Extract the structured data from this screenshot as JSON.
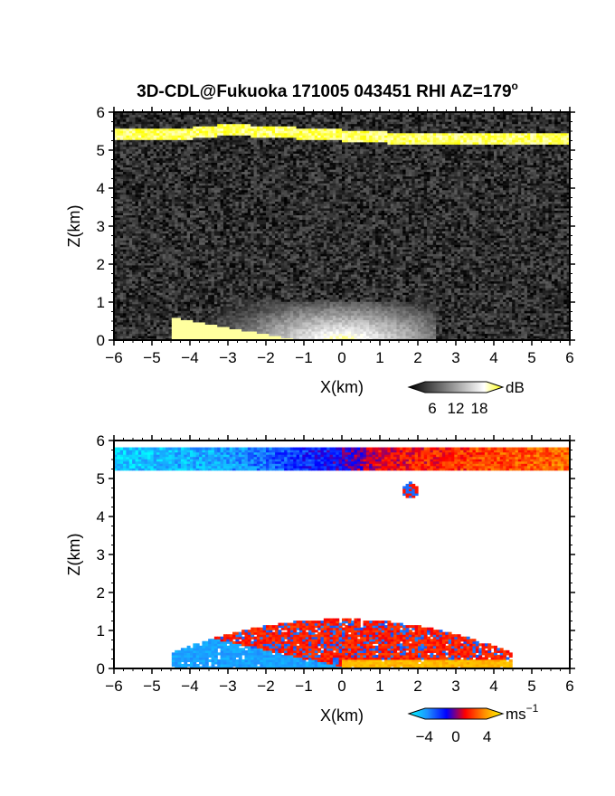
{
  "title": "3D-CDL@Fukuoka 171005 043451 RHI AZ=179",
  "title_superscript": "o",
  "chart_data": [
    {
      "type": "heatmap",
      "field": "snr",
      "xlabel": "X(km)",
      "ylabel": "Z(km)",
      "xlim": [
        -6,
        6
      ],
      "ylim": [
        0,
        6
      ],
      "xticks": [
        "-6",
        "-5",
        "-4",
        "-3",
        "-2",
        "-1",
        "0",
        "1",
        "2",
        "3",
        "4",
        "5",
        "6"
      ],
      "yticks": [
        "0",
        "1",
        "2",
        "3",
        "4",
        "5",
        "6"
      ],
      "colorbar": {
        "unit": "dB",
        "ticks": [
          "6",
          "12",
          "18"
        ],
        "tick_values": [
          6,
          12,
          18
        ],
        "range": [
          0,
          24
        ],
        "colors": [
          "#000000",
          "#404040",
          "#808080",
          "#c0c0c0",
          "#ffffff",
          "#ffff00"
        ]
      },
      "features": {
        "cloud_layer_z_km": [
          [
            -6,
            5.45
          ],
          [
            -4,
            5.45
          ],
          [
            -3,
            5.55
          ],
          [
            0,
            5.4
          ],
          [
            2,
            5.3
          ],
          [
            4,
            5.3
          ],
          [
            6,
            5.3
          ]
        ],
        "cloud_layer_depth_km": 0.3,
        "ground_return_x_km": [
          -3.5,
          1.5
        ],
        "ground_return_top_km": 1.0
      }
    },
    {
      "type": "heatmap",
      "field": "doppler_velocity",
      "xlabel": "X(km)",
      "ylabel": "Z(km)",
      "xlim": [
        -6,
        6
      ],
      "ylim": [
        0,
        6
      ],
      "xticks": [
        "-6",
        "-5",
        "-4",
        "-3",
        "-2",
        "-1",
        "0",
        "1",
        "2",
        "3",
        "4",
        "5",
        "6"
      ],
      "yticks": [
        "0",
        "1",
        "2",
        "3",
        "4",
        "5",
        "6"
      ],
      "colorbar": {
        "unit": "ms",
        "unit_superscript": "−1",
        "ticks": [
          "−4",
          "0",
          "4"
        ],
        "tick_values": [
          -4,
          0,
          4
        ],
        "range": [
          -6,
          6
        ],
        "colors": [
          "#00ffff",
          "#1e90ff",
          "#0000ff",
          "#ff0000",
          "#ff8c00",
          "#ffff00"
        ]
      },
      "features": {
        "cloud_layer_x_km": [
          -6,
          6
        ],
        "cloud_layer_z_km": [
          5.2,
          5.8
        ],
        "cloud_velocity_ms": [
          [
            -6,
            -5
          ],
          [
            -3,
            -4
          ],
          [
            0,
            -1
          ],
          [
            1,
            1
          ],
          [
            3,
            2
          ],
          [
            6,
            3
          ]
        ],
        "boundary_layer_x_km": [
          -4.5,
          4.5
        ],
        "boundary_layer_top_km": 1.2,
        "isolated_patch_x_km": 1.8,
        "isolated_patch_z_km": 4.7
      }
    }
  ]
}
